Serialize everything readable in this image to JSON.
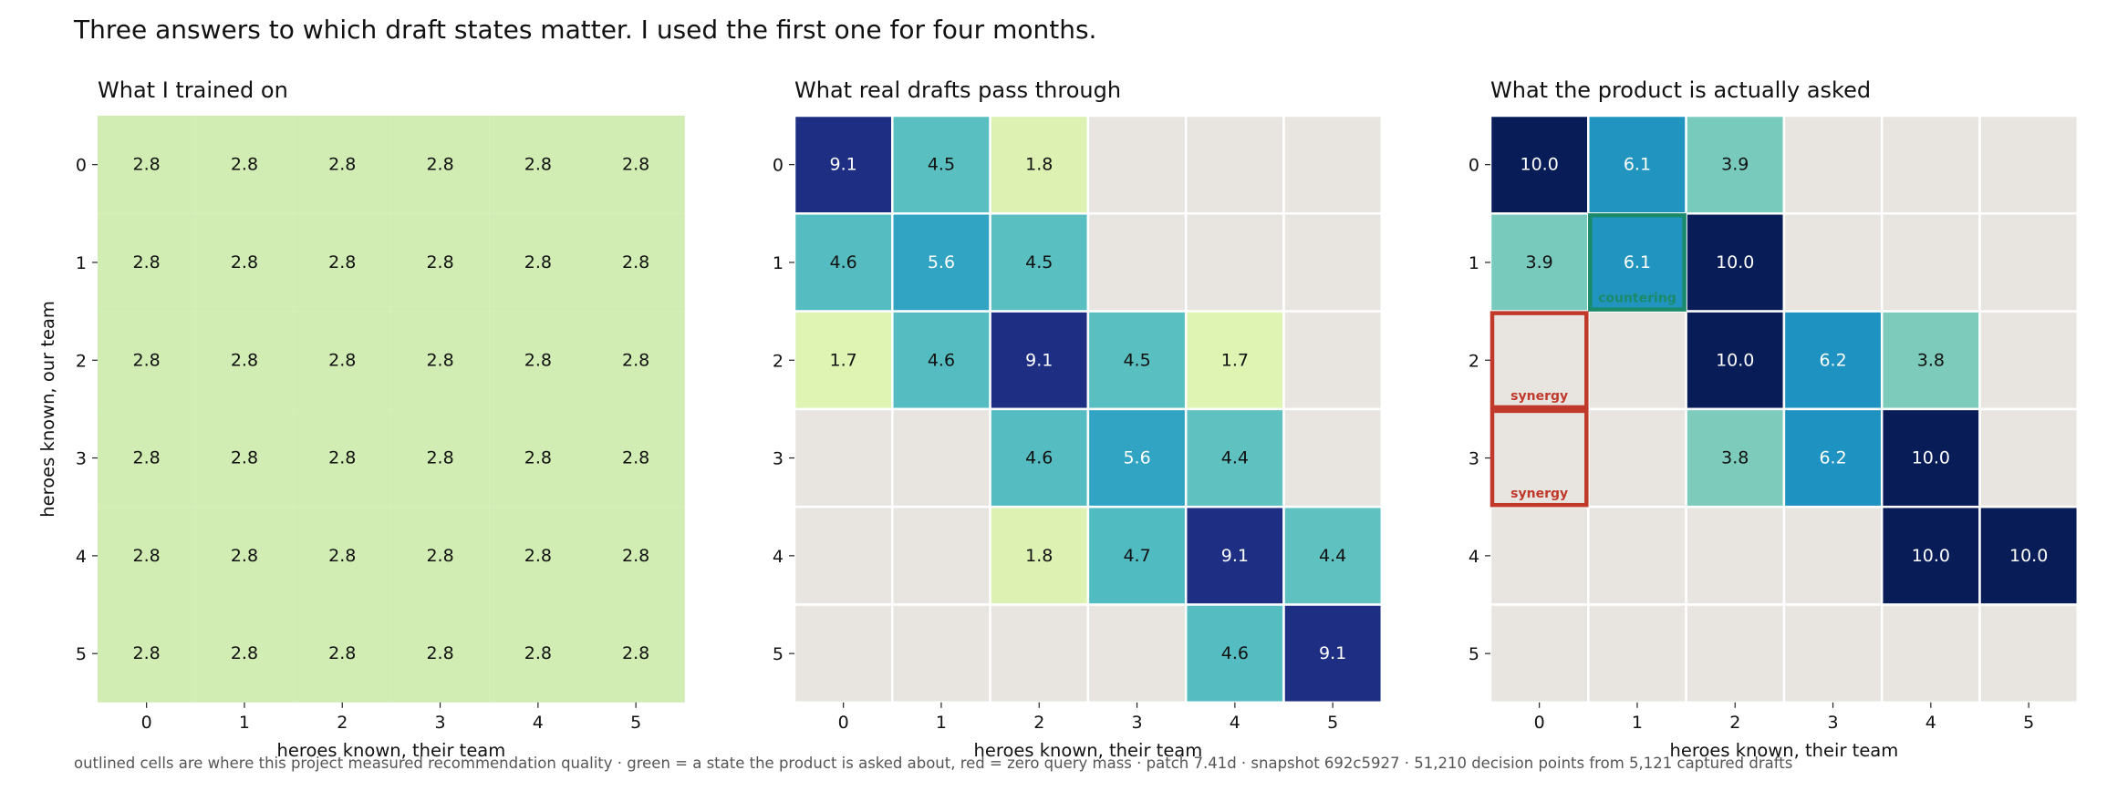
{
  "suptitle": "Three answers to which draft states matter. I used the first one for four months.",
  "footer": "outlined cells are where this project measured recommendation quality  ·  green = a state the product is asked about, red = zero query mass  ·  patch 7.41d  ·  snapshot 692c5927  ·  51,210 decision points from 5,121 captured drafts",
  "colors": {
    "empty": "#e8e5e1",
    "gridline": "#ffffff",
    "green_outline": "#1a8a6a",
    "red_outline": "#c0392b"
  },
  "chart_data": [
    {
      "type": "heatmap",
      "title": "What I trained on",
      "xlabel": "heroes known, their team",
      "ylabel": "heroes known, our team",
      "x_ticks": [
        "0",
        "1",
        "2",
        "3",
        "4",
        "5"
      ],
      "y_ticks": [
        "0",
        "1",
        "2",
        "3",
        "4",
        "5"
      ],
      "values": [
        [
          2.8,
          2.8,
          2.8,
          2.8,
          2.8,
          2.8
        ],
        [
          2.8,
          2.8,
          2.8,
          2.8,
          2.8,
          2.8
        ],
        [
          2.8,
          2.8,
          2.8,
          2.8,
          2.8,
          2.8
        ],
        [
          2.8,
          2.8,
          2.8,
          2.8,
          2.8,
          2.8
        ],
        [
          2.8,
          2.8,
          2.8,
          2.8,
          2.8,
          2.8
        ],
        [
          2.8,
          2.8,
          2.8,
          2.8,
          2.8,
          2.8
        ]
      ],
      "grid": false,
      "annotations": []
    },
    {
      "type": "heatmap",
      "title": "What real drafts pass through",
      "xlabel": "heroes known, their team",
      "ylabel": "",
      "x_ticks": [
        "0",
        "1",
        "2",
        "3",
        "4",
        "5"
      ],
      "y_ticks": [
        "0",
        "1",
        "2",
        "3",
        "4",
        "5"
      ],
      "values": [
        [
          9.1,
          4.5,
          1.8,
          null,
          null,
          null
        ],
        [
          4.6,
          5.6,
          4.5,
          null,
          null,
          null
        ],
        [
          1.7,
          4.6,
          9.1,
          4.5,
          1.7,
          null
        ],
        [
          null,
          null,
          4.6,
          5.6,
          4.4,
          null
        ],
        [
          null,
          null,
          1.8,
          4.7,
          9.1,
          4.4
        ],
        [
          null,
          null,
          null,
          null,
          4.6,
          9.1
        ]
      ],
      "grid": true,
      "annotations": []
    },
    {
      "type": "heatmap",
      "title": "What the product is actually asked",
      "xlabel": "heroes known, their team",
      "ylabel": "",
      "x_ticks": [
        "0",
        "1",
        "2",
        "3",
        "4",
        "5"
      ],
      "y_ticks": [
        "0",
        "1",
        "2",
        "3",
        "4",
        "5"
      ],
      "values": [
        [
          10.0,
          6.1,
          3.9,
          null,
          null,
          null
        ],
        [
          3.9,
          6.1,
          10.0,
          null,
          null,
          null
        ],
        [
          null,
          null,
          10.0,
          6.2,
          3.8,
          null
        ],
        [
          null,
          null,
          3.8,
          6.2,
          10.0,
          null
        ],
        [
          null,
          null,
          null,
          null,
          10.0,
          10.0
        ],
        [
          null,
          null,
          null,
          null,
          null,
          null
        ]
      ],
      "grid": true,
      "annotations": [
        {
          "row": 1,
          "col": 1,
          "label": "countering",
          "outline": "green"
        },
        {
          "row": 2,
          "col": 0,
          "label": "synergy",
          "outline": "red"
        },
        {
          "row": 3,
          "col": 0,
          "label": "synergy",
          "outline": "red"
        }
      ]
    }
  ]
}
